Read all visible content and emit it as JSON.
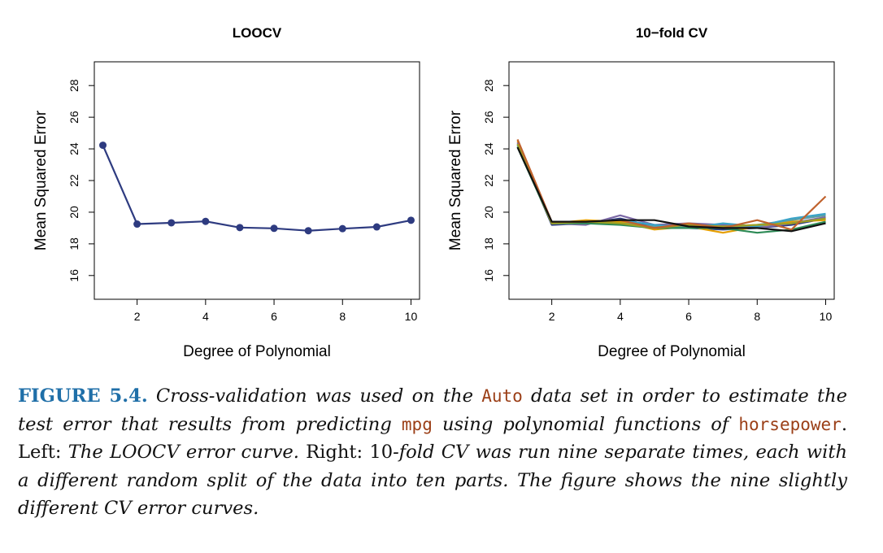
{
  "chart_data": [
    {
      "type": "line",
      "title": "LOOCV",
      "xlabel": "Degree of Polynomial",
      "ylabel": "Mean Squared Error",
      "xlim": [
        0.75,
        10.25
      ],
      "ylim": [
        14.5,
        29.5
      ],
      "xticks": [
        2,
        4,
        6,
        8,
        10
      ],
      "yticks": [
        16,
        18,
        20,
        22,
        24,
        26,
        28
      ],
      "markers": true,
      "series": [
        {
          "color": "#2e3b80",
          "x": [
            1,
            2,
            3,
            4,
            5,
            6,
            7,
            8,
            9,
            10
          ],
          "y": [
            24.23,
            19.25,
            19.33,
            19.42,
            19.03,
            18.98,
            18.83,
            18.96,
            19.07,
            19.49
          ]
        }
      ]
    },
    {
      "type": "line",
      "title": "10−fold CV",
      "xlabel": "Degree of Polynomial",
      "ylabel": "Mean Squared Error",
      "xlim": [
        0.75,
        10.25
      ],
      "ylim": [
        14.5,
        29.5
      ],
      "xticks": [
        2,
        4,
        6,
        8,
        10
      ],
      "yticks": [
        16,
        18,
        20,
        22,
        24,
        26,
        28
      ],
      "markers": false,
      "series": [
        {
          "color": "#2e3b80",
          "x": [
            1,
            2,
            3,
            4,
            5,
            6,
            7,
            8,
            9,
            10
          ],
          "y": [
            24.3,
            19.2,
            19.3,
            19.6,
            19.1,
            19.0,
            18.9,
            19.0,
            19.2,
            19.6
          ]
        },
        {
          "color": "#e69f00",
          "x": [
            1,
            2,
            3,
            4,
            5,
            6,
            7,
            8,
            9,
            10
          ],
          "y": [
            24.5,
            19.3,
            19.5,
            19.4,
            18.9,
            19.1,
            18.7,
            19.1,
            19.4,
            19.5
          ]
        },
        {
          "color": "#7b68a6",
          "x": [
            1,
            2,
            3,
            4,
            5,
            6,
            7,
            8,
            9,
            10
          ],
          "y": [
            24.4,
            19.3,
            19.2,
            19.8,
            19.2,
            19.3,
            19.2,
            19.0,
            19.3,
            19.7
          ]
        },
        {
          "color": "#5f9ea0",
          "x": [
            1,
            2,
            3,
            4,
            5,
            6,
            7,
            8,
            9,
            10
          ],
          "y": [
            24.3,
            19.3,
            19.3,
            19.3,
            19.1,
            19.2,
            19.0,
            19.2,
            19.5,
            19.8
          ]
        },
        {
          "color": "#3aa3c7",
          "x": [
            1,
            2,
            3,
            4,
            5,
            6,
            7,
            8,
            9,
            10
          ],
          "y": [
            24.2,
            19.4,
            19.4,
            19.5,
            19.2,
            19.0,
            19.3,
            19.1,
            19.6,
            19.9
          ]
        },
        {
          "color": "#2e8b57",
          "x": [
            1,
            2,
            3,
            4,
            5,
            6,
            7,
            8,
            9,
            10
          ],
          "y": [
            24.1,
            19.3,
            19.3,
            19.2,
            19.0,
            19.0,
            19.0,
            18.7,
            18.9,
            19.4
          ]
        },
        {
          "color": "#a0a020",
          "x": [
            1,
            2,
            3,
            4,
            5,
            6,
            7,
            8,
            9,
            10
          ],
          "y": [
            24.3,
            19.3,
            19.4,
            19.3,
            19.0,
            19.2,
            19.1,
            19.2,
            19.3,
            19.6
          ]
        },
        {
          "color": "#c0622d",
          "x": [
            1,
            2,
            3,
            4,
            5,
            6,
            7,
            8,
            9,
            10
          ],
          "y": [
            24.6,
            19.4,
            19.4,
            19.5,
            19.0,
            19.3,
            19.0,
            19.5,
            18.9,
            21.0
          ]
        },
        {
          "color": "#111111",
          "x": [
            1,
            2,
            3,
            4,
            5,
            6,
            7,
            8,
            9,
            10
          ],
          "y": [
            24.1,
            19.4,
            19.4,
            19.5,
            19.5,
            19.1,
            19.0,
            19.0,
            18.8,
            19.3
          ]
        }
      ]
    }
  ],
  "caption": {
    "figure_label": "FIGURE 5.4.",
    "part1": "Cross-validation was used on the",
    "code1": "Auto",
    "part2": "data set in order to estimate the test error that results from predicting",
    "code2": "mpg",
    "part3": "using polynomial functions of",
    "code3": "horsepower",
    "part4": ".",
    "left_label": "Left:",
    "left_text": "The LOOCV error curve.",
    "right_label": "Right:",
    "right_text_num": "10",
    "right_text": "-fold CV was run nine separate times, each with a different random split of the data into ten parts. The figure shows the nine slightly different CV error curves."
  }
}
